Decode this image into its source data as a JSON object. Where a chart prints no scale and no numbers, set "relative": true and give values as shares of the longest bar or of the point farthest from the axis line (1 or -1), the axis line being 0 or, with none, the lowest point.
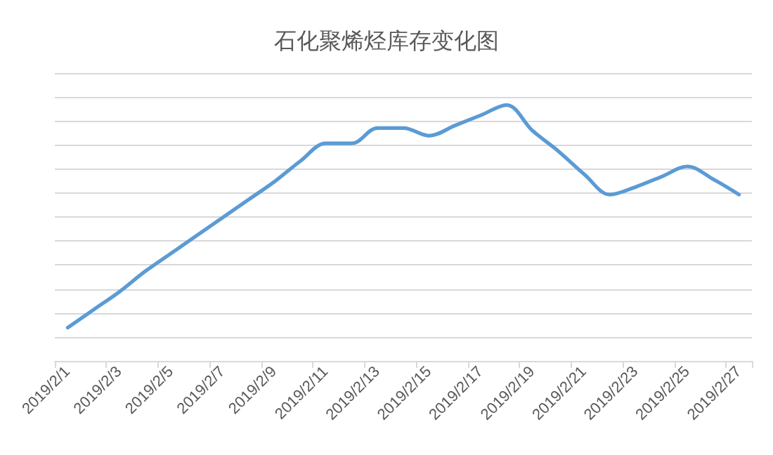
{
  "chart_data": {
    "type": "line",
    "title": "石化聚烯烃库存变化图",
    "relative": true,
    "categories": [
      "2019/2/1",
      null,
      "2019/2/3",
      null,
      "2019/2/5",
      null,
      "2019/2/7",
      null,
      "2019/2/9",
      null,
      "2019/2/11",
      null,
      "2019/2/13",
      null,
      "2019/2/15",
      null,
      "2019/2/17",
      null,
      "2019/2/19",
      null,
      "2019/2/21",
      null,
      "2019/2/23",
      null,
      "2019/2/25",
      null,
      "2019/2/27"
    ],
    "series": [
      {
        "color": "#5b9bd5",
        "values": [
          0.13,
          0.2,
          0.27,
          0.35,
          0.42,
          0.49,
          0.56,
          0.63,
          0.7,
          0.78,
          0.85,
          0.85,
          0.91,
          0.91,
          0.88,
          0.92,
          0.96,
          1,
          0.9,
          0.82,
          0.73,
          0.65,
          0.68,
          0.72,
          0.76,
          0.71,
          0.65
        ]
      }
    ],
    "grid": "y",
    "marker": "none",
    "line_style": "solid"
  }
}
